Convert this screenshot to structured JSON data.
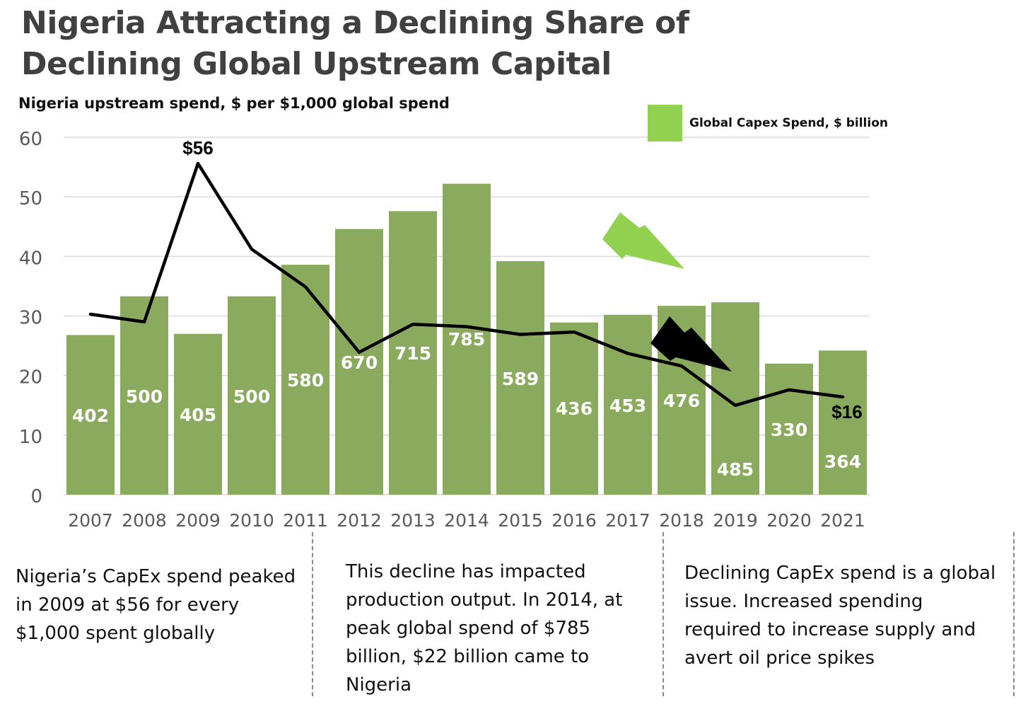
{
  "title_lines": [
    "Nigeria Attracting a Declining Share of",
    "Declining Global Upstream Capital"
  ],
  "subtitle": "Nigeria upstream spend, $ per $1,000 global spend",
  "legend": {
    "label": "Global Capex Spend, $ billion",
    "color": "#92d050"
  },
  "colors": {
    "bar": "#8aab5e",
    "line": "#000000",
    "grid": "#d9d9d9",
    "arrow_green": "#92d050",
    "arrow_black": "#000000"
  },
  "chart_data": {
    "type": "bar",
    "categories": [
      "2007",
      "2008",
      "2009",
      "2010",
      "2011",
      "2012",
      "2013",
      "2014",
      "2015",
      "2016",
      "2017",
      "2018",
      "2019",
      "2020",
      "2021"
    ],
    "ylim": [
      0,
      60
    ],
    "yticks": [
      0,
      10,
      20,
      30,
      40,
      50,
      60
    ],
    "grid": true,
    "legend_position": "top-right",
    "series": [
      {
        "name": "Global Capex Spend, $ billion",
        "type": "bar",
        "bar_heights_on_axis": [
          26.8,
          33.3,
          27.0,
          33.3,
          38.6,
          44.6,
          47.6,
          52.2,
          39.2,
          28.9,
          30.2,
          31.7,
          32.3,
          22.0,
          24.2
        ],
        "data_labels": [
          "402",
          "500",
          "405",
          "500",
          "580",
          "670",
          "715",
          "785",
          "589",
          "436",
          "453",
          "476",
          "485",
          "330",
          "364"
        ]
      },
      {
        "name": "Nigeria upstream spend, $ per $1,000 global spend",
        "type": "line",
        "values": [
          30.3,
          29.0,
          55.6,
          41.2,
          34.9,
          23.9,
          28.6,
          28.2,
          26.9,
          27.3,
          23.7,
          21.6,
          15.0,
          17.6,
          16.4
        ],
        "annotations": [
          {
            "category": "2009",
            "text": "$56"
          },
          {
            "category": "2021",
            "text": "$16"
          }
        ]
      }
    ]
  },
  "notes": [
    "Nigeria’s CapEx spend peaked in 2009 at $56 for every $1,000 spent globally",
    "This decline has impacted production output. In 2014, at peak global spend of $785 billion, $22 billion came to Nigeria",
    "Declining CapEx spend is a global issue. Increased spending required to increase supply and avert oil price spikes"
  ]
}
